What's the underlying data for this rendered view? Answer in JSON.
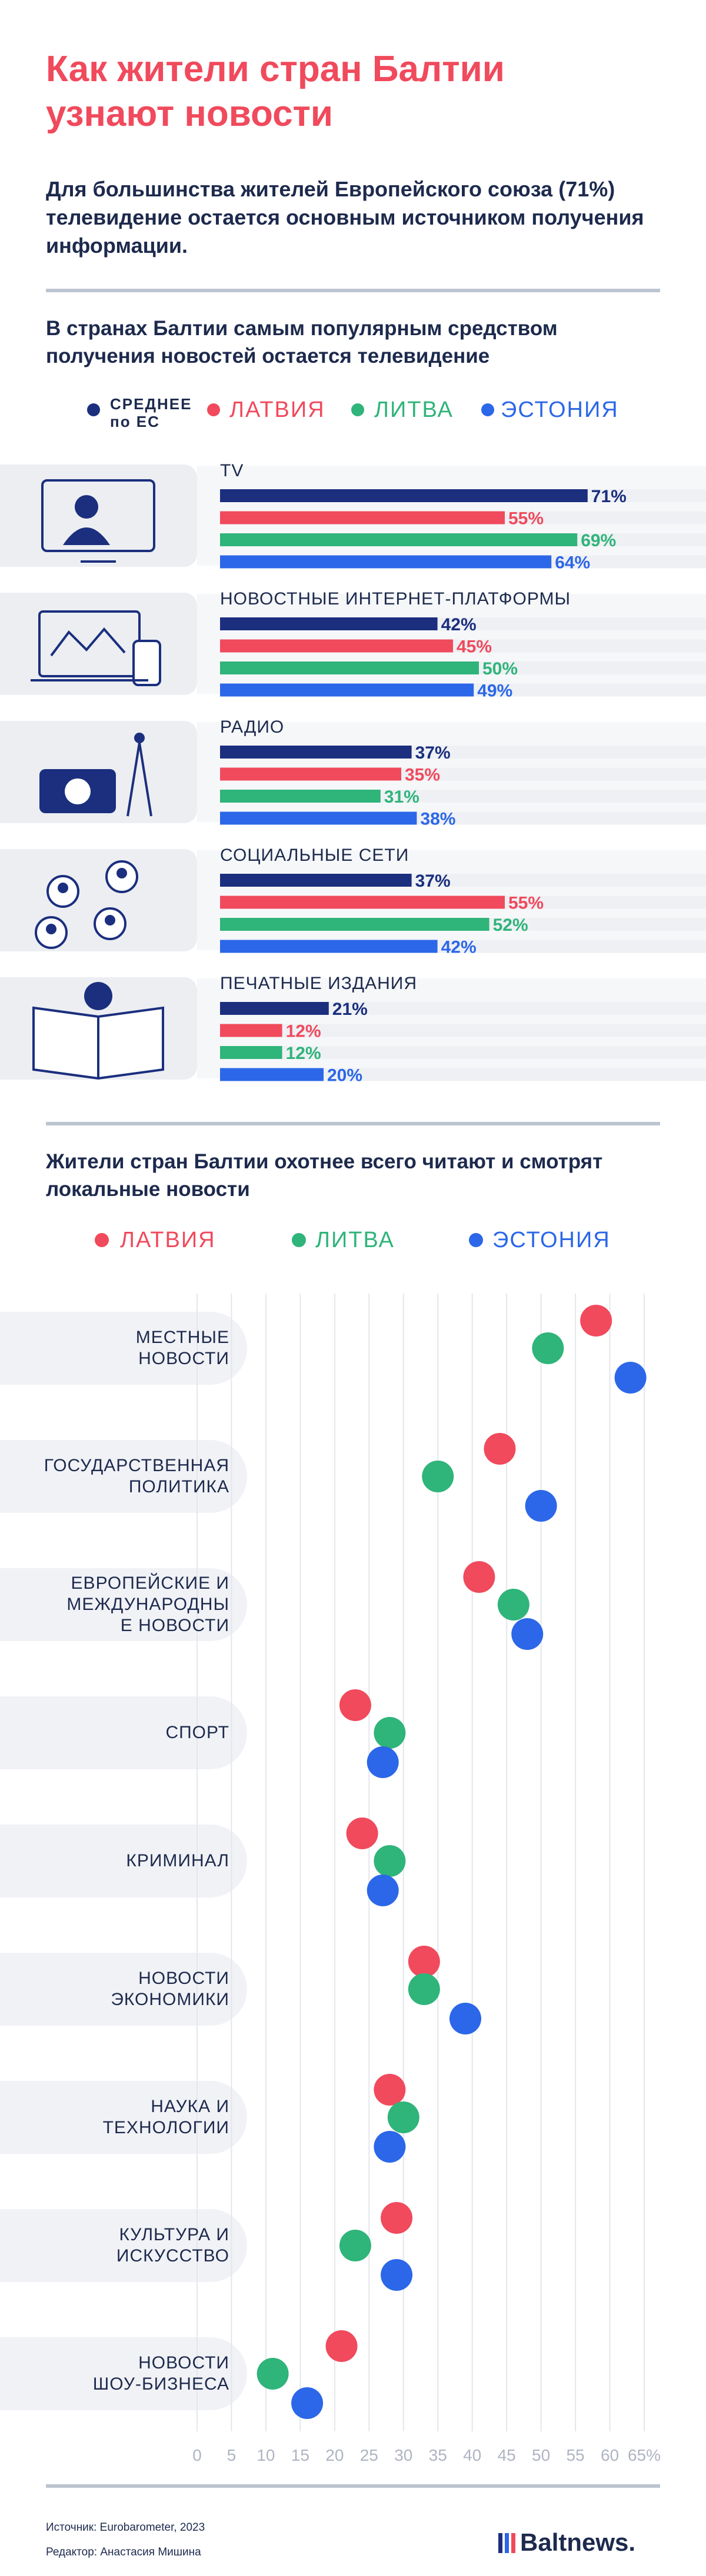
{
  "header": {
    "title": "Как жители стран Балтии узнают новости",
    "subtitle": "Для большинства жителей Европейского союза (71%) телевидение остается основным источником получения информации."
  },
  "chart_data": [
    {
      "type": "bar",
      "title": "В странах Балтии самым популярным средством получения новостей остается телевидение",
      "categories": [
        "TV",
        "НОВОСТНЫЕ ИНТЕРНЕТ-ПЛАТФОРМЫ",
        "РАДИО",
        "СОЦИАЛЬНЫЕ СЕТИ",
        "ПЕЧАТНЫЕ ИЗДАНИЯ"
      ],
      "series": [
        {
          "name": "СРЕДНЕЕ по ЕС",
          "color": "#1b2f7e",
          "values": [
            71,
            42,
            37,
            37,
            21
          ],
          "value_labels": [
            "71%",
            "42%",
            "37%",
            "37%",
            "21%"
          ]
        },
        {
          "name": "ЛАТВИЯ",
          "color": "#f04a5c",
          "values": [
            55,
            45,
            35,
            55,
            12
          ],
          "value_labels": [
            "55%",
            "45%",
            "35%",
            "55%",
            "12%"
          ]
        },
        {
          "name": "ЛИТВА",
          "color": "#2fb47a",
          "values": [
            69,
            50,
            31,
            52,
            12
          ],
          "value_labels": [
            "69%",
            "50%",
            "31%",
            "52%",
            "12%"
          ]
        },
        {
          "name": "ЭСТОНИЯ",
          "color": "#2b67e8",
          "values": [
            64,
            49,
            38,
            42,
            20
          ],
          "value_labels": [
            "64%",
            "49%",
            "38%",
            "42%",
            "20%"
          ]
        }
      ]
    },
    {
      "type": "dot",
      "title": "Жители стран Балтии охотнее всего читают и смотрят локальные новости",
      "categories": [
        "МЕСТНЫЕ\nНОВОСТИ",
        "ГОСУДАРСТВЕННАЯ\nПОЛИТИКА",
        "ЕВРОПЕЙСКИЕ И\nМЕЖДУНАРОДНЫ\nЕ НОВОСТИ",
        "СПОРТ",
        "КРИМИНАЛ",
        "НОВОСТИ\nЭКОНОМИКИ",
        "НАУКА И\nТЕХНОЛОГИИ",
        "КУЛЬТУРА И\nИСКУССТВО",
        "НОВОСТИ\nШОУ-БИЗНЕСА"
      ],
      "series": [
        {
          "name": "ЛАТВИЯ",
          "color": "#f04a5c",
          "values": [
            58,
            44,
            41,
            23,
            24,
            33,
            28,
            29,
            21
          ]
        },
        {
          "name": "ЛИТВА",
          "color": "#2fb47a",
          "values": [
            51,
            35,
            46,
            28,
            28,
            33,
            30,
            23,
            11
          ]
        },
        {
          "name": "ЭСТОНИЯ",
          "color": "#2b67e8",
          "values": [
            63,
            50,
            48,
            27,
            27,
            39,
            28,
            29,
            16
          ]
        }
      ],
      "xlim": [
        0,
        65
      ],
      "xticks": [
        0,
        5,
        10,
        15,
        20,
        25,
        30,
        35,
        40,
        45,
        50,
        55,
        60,
        {
          "value": 65,
          "label": "65%"
        }
      ],
      "grid": true
    }
  ],
  "footer": {
    "source": "Источник: Eurobarometer, 2023",
    "editor": "Редактор: Анастасия Мишина",
    "logo": "Baltnews."
  }
}
